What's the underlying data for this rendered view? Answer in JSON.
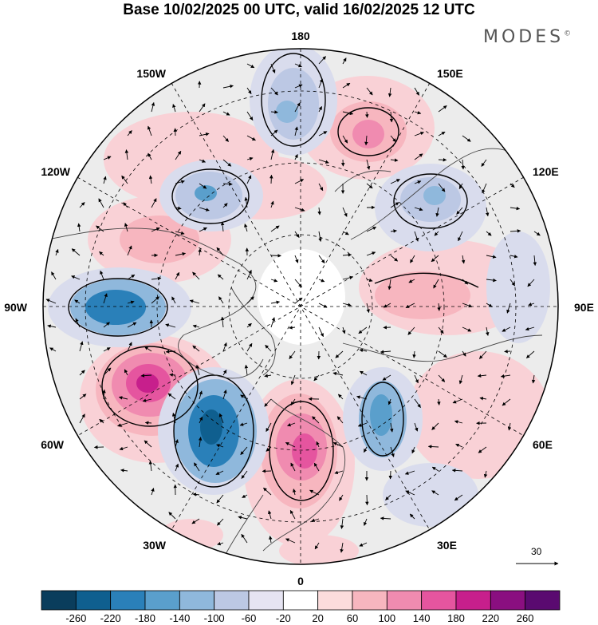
{
  "title": "Base 10/02/2025 00 UTC, valid 16/02/2025 12 UTC",
  "brand": "MODES",
  "brand_mark": "©",
  "longitude_labels": {
    "n": "180",
    "s": "0",
    "e": "90E",
    "w": "90W",
    "ne1": "150E",
    "ne2": "120E",
    "nw1": "150W",
    "nw2": "120W",
    "se1": "60E",
    "se2": "30E",
    "sw1": "60W",
    "sw2": "30W"
  },
  "vector_scale_label": "30",
  "colorbar": {
    "labels": [
      "-260",
      "-220",
      "-180",
      "-140",
      "-100",
      "-60",
      "-20",
      "20",
      "60",
      "100",
      "140",
      "180",
      "220",
      "260"
    ],
    "colors": [
      "#0a3d5c",
      "#0f5f8f",
      "#2a80b9",
      "#5a9fcc",
      "#8fb8dc",
      "#bcc8e4",
      "#e6e4f2",
      "#ffffff",
      "#fcdcdc",
      "#f7b6bf",
      "#f08bb0",
      "#e5559f",
      "#c71f8c",
      "#8a0f80",
      "#5a0a70"
    ]
  },
  "anomaly_colors": {
    "strong_neg": "#2a7ab8",
    "mid_neg": "#8fb8dc",
    "weak_neg": "#d9dced",
    "strong_pos": "#c8208e",
    "mid_pos": "#f08bb0",
    "weak_pos": "#f9d1d6",
    "neutral": "#ececec"
  }
}
